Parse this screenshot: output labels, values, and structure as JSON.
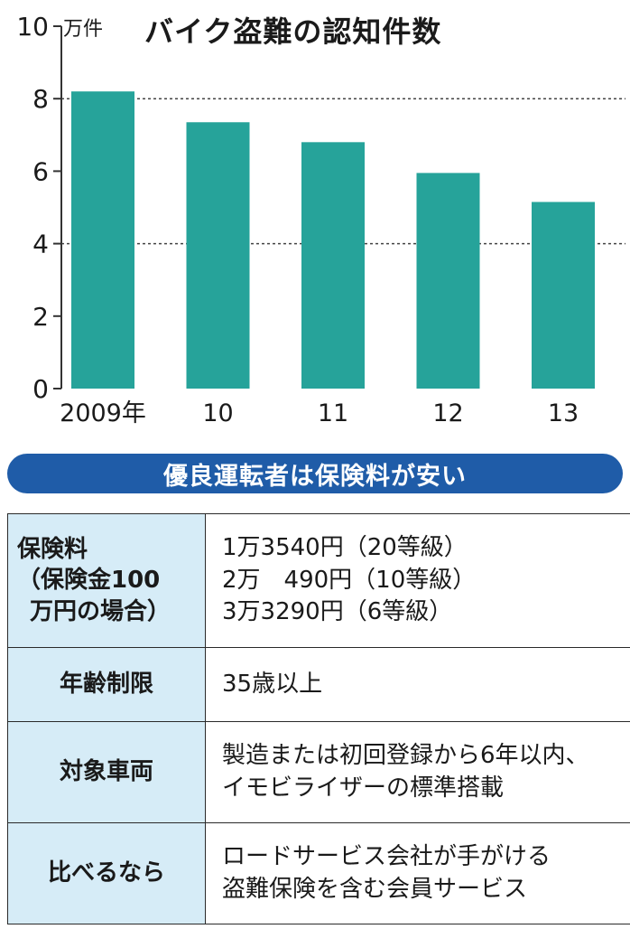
{
  "chart_data": {
    "type": "bar",
    "title": "バイク盗難の認知件数",
    "unit": "万件",
    "categories": [
      "2009年",
      "10",
      "11",
      "12",
      "13"
    ],
    "values": [
      8.2,
      7.35,
      6.8,
      5.95,
      5.15
    ],
    "ylim": [
      0,
      10
    ],
    "yticks": [
      "0",
      "2",
      "4",
      "6",
      "8",
      "10"
    ],
    "grid": "dashed at 4 and 8",
    "bar_color": "#26a39a"
  },
  "banner": {
    "text": "優良運転者は保険料が安い",
    "color": "#1f5ca8"
  },
  "table": {
    "rows": [
      {
        "label": [
          "保険料",
          "（保険金100",
          "万円の場合）"
        ],
        "value": [
          "1万3540円（20等級）",
          "2万　490円（10等級）",
          "3万3290円（6等級）"
        ]
      },
      {
        "label": [
          "年齢制限"
        ],
        "value": [
          "35歳以上"
        ]
      },
      {
        "label": [
          "対象車両"
        ],
        "value": [
          "製造または初回登録から6年以内、",
          "イモビライザーの標準搭載"
        ]
      },
      {
        "label": [
          "比べるなら"
        ],
        "value": [
          "ロードサービス会社が手がける",
          "盗難保険を含む会員サービス"
        ]
      }
    ],
    "label_bg": "#d6ecf7"
  }
}
